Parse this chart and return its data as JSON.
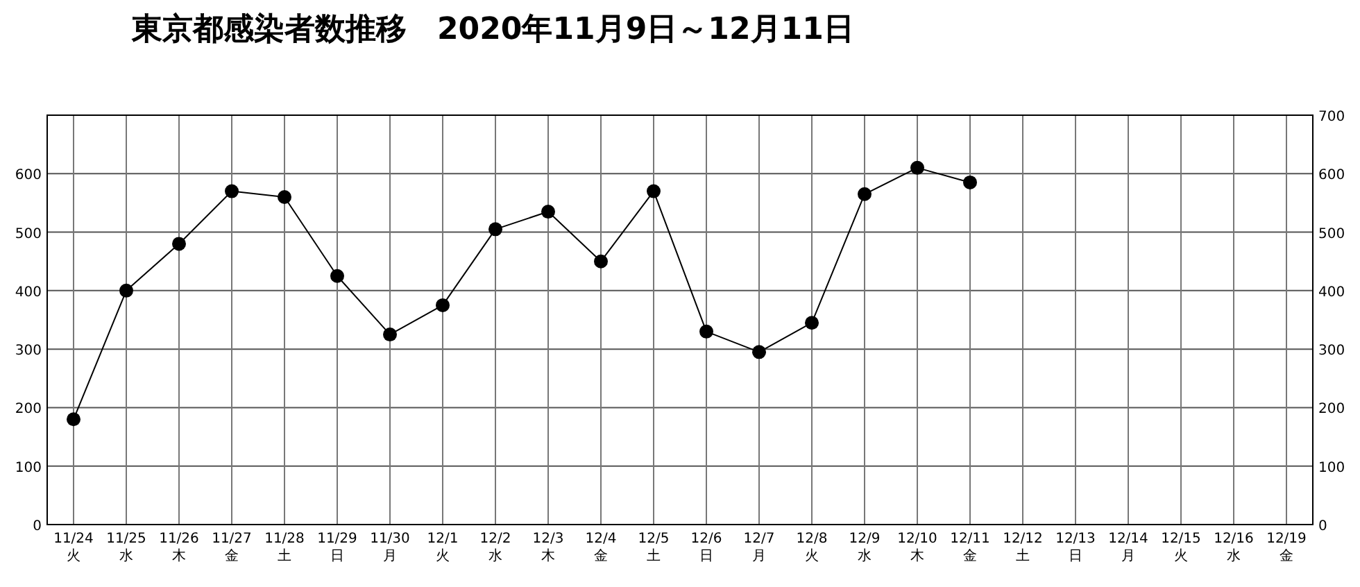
{
  "chart_data": {
    "type": "line",
    "title": "東京都感染者数推移　2020年11月9日～12月11日",
    "categories": [
      "11/24\n火",
      "11/25\n水",
      "11/26\n木",
      "11/27\n金",
      "11/28\n土",
      "11/29\n日",
      "11/30\n月",
      "12/1\n火",
      "12/2\n水",
      "12/3\n木",
      "12/4\n金",
      "12/5\n土",
      "12/6\n日",
      "12/7\n月",
      "12/8\n火",
      "12/9\n水",
      "12/10\n木",
      "12/11\n金",
      "12/12\n土",
      "12/13\n日",
      "12/14\n月",
      "12/15\n火",
      "12/16\n水",
      "12/19\n金"
    ],
    "series": [
      {
        "color": "#000000",
        "values": [
          180,
          400,
          480,
          570,
          560,
          425,
          325,
          375,
          505,
          535,
          450,
          570,
          330,
          295,
          345,
          565,
          610,
          585,
          null,
          null,
          null,
          null,
          null,
          null
        ]
      }
    ],
    "ylim": [
      0,
      700
    ],
    "yticks": [
      0,
      100,
      200,
      300,
      400,
      500,
      600
    ],
    "y2lim": [
      0,
      700
    ],
    "y2ticks": [
      0,
      100,
      200,
      300,
      400,
      500,
      600,
      700
    ],
    "grid": true,
    "marker": "circle",
    "line_style": "solid"
  }
}
